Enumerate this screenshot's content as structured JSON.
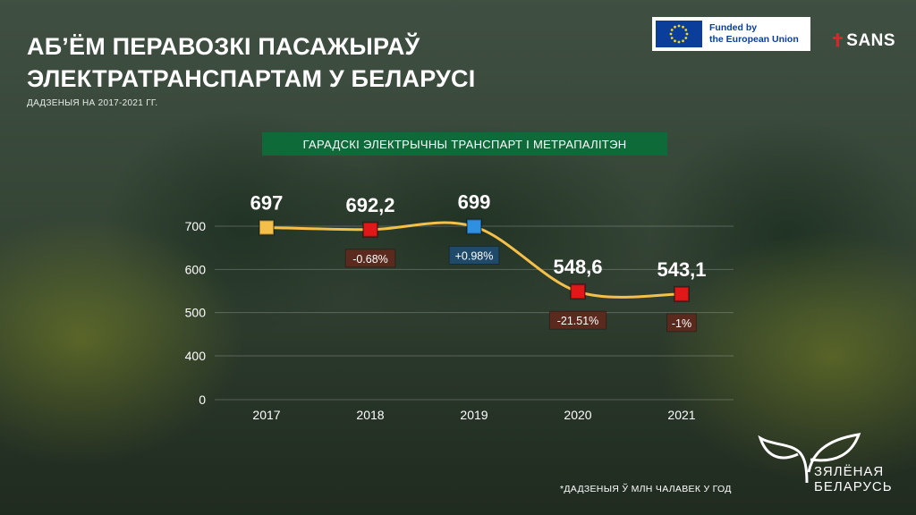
{
  "header": {
    "title_line1": "АБ’ЁМ ПЕРАВОЗКІ ПАСАЖЫРАЎ",
    "title_line2": "ЭЛЕКТРАТРАНСПАРТАМ У БЕЛАРУСІ",
    "subtitle": "ДАДЗЕНЫЯ НА 2017-2021 ГГ."
  },
  "logos": {
    "eu_line1": "Funded by",
    "eu_line2": "the European Union",
    "sans": "SANS",
    "zb_line1": "ЗЯЛЁНАЯ",
    "zb_line2": "БЕЛАРУСЬ"
  },
  "footnote": "*ДАДЗЕНЫЯ Ў МЛН ЧАЛАВЕК У ГОД",
  "chart_data": {
    "type": "line",
    "title": "ГАРАДСКІ ЭЛЕКТРЫЧНЫ ТРАНСПАРТ І МЕТРАПАЛІТЭН",
    "x": [
      "2017",
      "2018",
      "2019",
      "2020",
      "2021"
    ],
    "values": [
      697,
      692.2,
      699,
      548.6,
      543.1
    ],
    "value_labels": [
      "697",
      "692,2",
      "699",
      "548,6",
      "543,1"
    ],
    "change_labels": [
      "",
      "-0.68%",
      "+0.98%",
      "-21.51%",
      "-1%"
    ],
    "marker_colors": [
      "#f4c04a",
      "#e01818",
      "#2f8fe0",
      "#e01818",
      "#e01818"
    ],
    "change_colors": [
      "",
      "#5a2a1e",
      "#1f4a6a",
      "#5a2a1e",
      "#5a2a1e"
    ],
    "ylim": [
      0,
      700
    ],
    "y_ticks": [
      0,
      400,
      500,
      600,
      700
    ],
    "xlabel": "",
    "ylabel": "",
    "line_color": "#f4c04a"
  }
}
